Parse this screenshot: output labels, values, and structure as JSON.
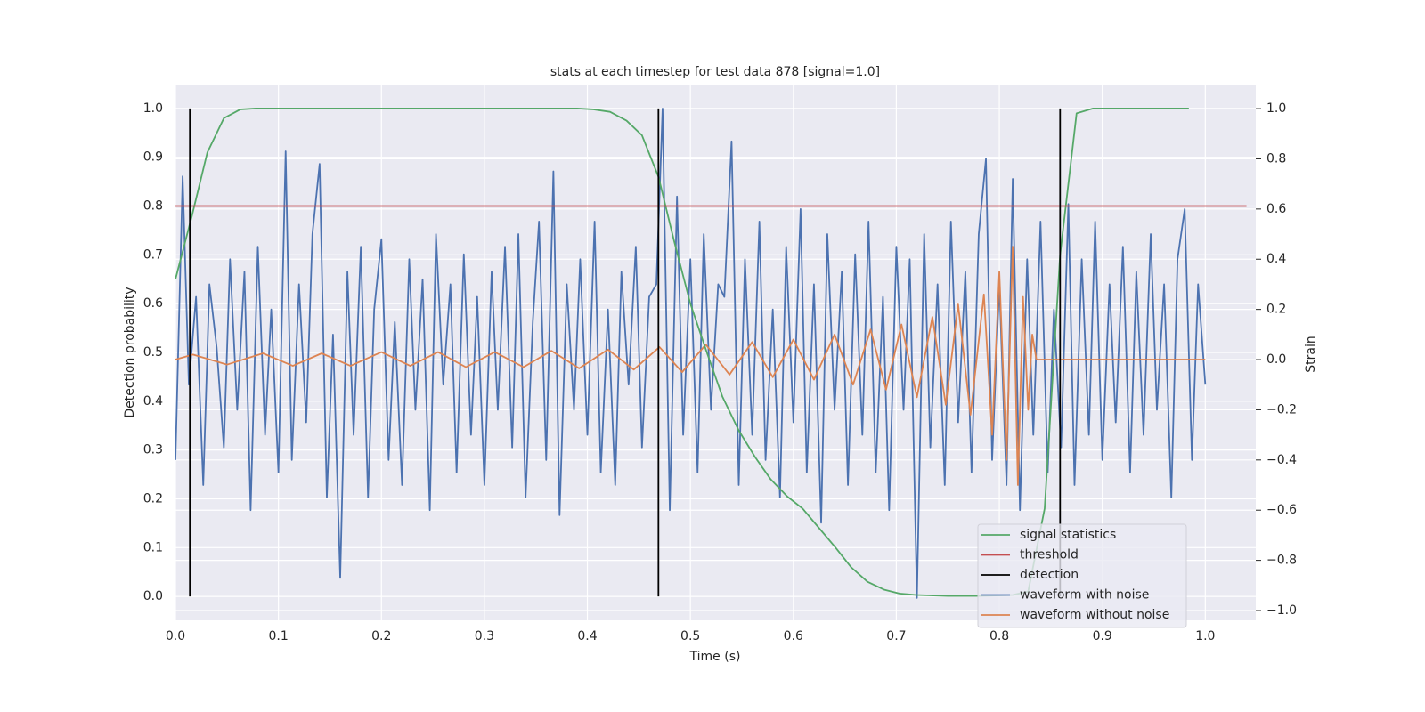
{
  "chart_data": {
    "type": "line",
    "title": "stats at each timestep for test data 878 [signal=1.0]",
    "xlabel": "Time (s)",
    "ylabel": "Detection probability",
    "y2label": "Strain",
    "xlim": [
      0,
      1.049
    ],
    "ylim": [
      -0.049,
      1.049
    ],
    "y2lim": [
      -1.039,
      1.096
    ],
    "xticks": [
      {
        "value": 0,
        "label": "0.0"
      },
      0.1,
      0.2,
      0.3,
      0.4,
      0.5,
      0.6,
      0.7,
      0.8,
      0.9,
      {
        "value": 1,
        "label": "1.0"
      }
    ],
    "yticks": [
      {
        "value": 0,
        "label": "0.0"
      },
      0.1,
      0.2,
      0.3,
      0.4,
      0.5,
      0.6,
      0.7,
      0.8,
      0.9,
      {
        "value": 1,
        "label": "1.0"
      }
    ],
    "y2ticks": [
      {
        "value": -1,
        "label": "−1.0"
      },
      {
        "value": -0.8,
        "label": "−0.8"
      },
      {
        "value": -0.6,
        "label": "−0.6"
      },
      {
        "value": -0.4,
        "label": "−0.4"
      },
      {
        "value": -0.2,
        "label": "−0.2"
      },
      {
        "value": 0,
        "label": "0.0"
      },
      0.2,
      0.4,
      0.6,
      0.8,
      {
        "value": 1,
        "label": "1.0"
      }
    ],
    "grid": true,
    "legend": "lower right",
    "series": [
      {
        "name": "signal statistics",
        "color": "#55a868",
        "x": [
          0,
          0.016,
          0.031,
          0.047,
          0.063,
          0.078,
          0.2,
          0.39,
          0.406,
          0.422,
          0.438,
          0.453,
          0.469,
          0.484,
          0.5,
          0.516,
          0.531,
          0.547,
          0.563,
          0.578,
          0.594,
          0.609,
          0.625,
          0.641,
          0.656,
          0.672,
          0.688,
          0.703,
          0.719,
          0.75,
          0.781,
          0.797,
          0.813,
          0.828,
          0.844,
          0.859,
          0.875,
          0.891,
          0.984
        ],
        "values": [
          0.65,
          0.78,
          0.91,
          0.98,
          0.998,
          1.0,
          1.0,
          1.0,
          0.998,
          0.993,
          0.975,
          0.945,
          0.86,
          0.73,
          0.6,
          0.5,
          0.41,
          0.34,
          0.285,
          0.24,
          0.205,
          0.18,
          0.14,
          0.1,
          0.06,
          0.03,
          0.014,
          0.006,
          0.003,
          0.001,
          0.001,
          0.002,
          0.003,
          0.01,
          0.18,
          0.7,
          0.99,
          1.0,
          1.0
        ]
      },
      {
        "name": "threshold",
        "color": "#c44e52",
        "x": [
          0,
          1.04
        ],
        "values": [
          0.8,
          0.8
        ]
      },
      {
        "name": "detection",
        "color": "#000000",
        "x": [
          0.014,
          0.469,
          0.859
        ],
        "ymin": 0,
        "ymax": 1
      },
      {
        "name": "waveform with noise",
        "color": "#4c72b0",
        "axis": "y2",
        "x": [
          0,
          0.007,
          0.013,
          0.02,
          0.027,
          0.033,
          0.04,
          0.047,
          0.053,
          0.06,
          0.067,
          0.073,
          0.08,
          0.087,
          0.093,
          0.1,
          0.107,
          0.113,
          0.12,
          0.127,
          0.133,
          0.14,
          0.147,
          0.153,
          0.16,
          0.167,
          0.173,
          0.18,
          0.187,
          0.193,
          0.2,
          0.207,
          0.213,
          0.22,
          0.227,
          0.233,
          0.24,
          0.247,
          0.253,
          0.26,
          0.267,
          0.273,
          0.28,
          0.287,
          0.293,
          0.3,
          0.307,
          0.313,
          0.32,
          0.327,
          0.333,
          0.34,
          0.347,
          0.353,
          0.36,
          0.367,
          0.373,
          0.38,
          0.387,
          0.393,
          0.4,
          0.407,
          0.413,
          0.42,
          0.427,
          0.433,
          0.44,
          0.447,
          0.453,
          0.46,
          0.467,
          0.473,
          0.48,
          0.487,
          0.493,
          0.5,
          0.507,
          0.513,
          0.52,
          0.527,
          0.533,
          0.54,
          0.547,
          0.553,
          0.56,
          0.567,
          0.573,
          0.58,
          0.587,
          0.593,
          0.6,
          0.607,
          0.613,
          0.62,
          0.627,
          0.633,
          0.64,
          0.647,
          0.653,
          0.66,
          0.667,
          0.673,
          0.68,
          0.687,
          0.693,
          0.7,
          0.707,
          0.713,
          0.72,
          0.727,
          0.733,
          0.74,
          0.747,
          0.753,
          0.76,
          0.767,
          0.773,
          0.78,
          0.787,
          0.793,
          0.8,
          0.807,
          0.813,
          0.82,
          0.827,
          0.833,
          0.84,
          0.847,
          0.853,
          0.86,
          0.867,
          0.873,
          0.88,
          0.887,
          0.893,
          0.9,
          0.907,
          0.913,
          0.92,
          0.927,
          0.933,
          0.94,
          0.947,
          0.953,
          0.96,
          0.967,
          0.973,
          0.98,
          0.987,
          0.993,
          1.0
        ],
        "values": [
          -0.4,
          0.73,
          -0.1,
          0.25,
          -0.5,
          0.3,
          0.05,
          -0.35,
          0.4,
          -0.2,
          0.35,
          -0.6,
          0.45,
          -0.3,
          0.2,
          -0.45,
          0.83,
          -0.4,
          0.3,
          -0.25,
          0.5,
          0.78,
          -0.55,
          0.1,
          -0.87,
          0.35,
          -0.3,
          0.45,
          -0.55,
          0.2,
          0.48,
          -0.4,
          0.15,
          -0.5,
          0.4,
          -0.2,
          0.32,
          -0.6,
          0.5,
          -0.1,
          0.3,
          -0.45,
          0.42,
          -0.3,
          0.25,
          -0.5,
          0.35,
          -0.2,
          0.45,
          -0.35,
          0.5,
          -0.55,
          0.15,
          0.55,
          -0.4,
          0.75,
          -0.62,
          0.3,
          -0.2,
          0.4,
          -0.3,
          0.55,
          -0.45,
          0.2,
          -0.5,
          0.35,
          -0.1,
          0.45,
          -0.35,
          0.25,
          0.3,
          1.0,
          -0.6,
          0.65,
          -0.3,
          0.4,
          -0.45,
          0.5,
          -0.2,
          0.3,
          0.25,
          0.87,
          -0.5,
          0.4,
          -0.3,
          0.55,
          -0.4,
          0.2,
          -0.55,
          0.45,
          -0.25,
          0.6,
          -0.45,
          0.3,
          -0.65,
          0.5,
          -0.2,
          0.35,
          -0.5,
          0.42,
          -0.3,
          0.55,
          -0.45,
          0.25,
          -0.6,
          0.45,
          -0.2,
          0.4,
          -0.95,
          0.5,
          -0.35,
          0.3,
          -0.5,
          0.55,
          -0.25,
          0.35,
          -0.45,
          0.5,
          0.8,
          -0.4,
          0.3,
          -0.5,
          0.72,
          -0.6,
          0.4,
          -0.3,
          0.55,
          -0.45,
          0.2,
          -0.35,
          0.62,
          -0.5,
          0.4,
          -0.3,
          0.55,
          -0.4,
          0.3,
          -0.25,
          0.45,
          -0.45,
          0.35,
          -0.3,
          0.5,
          -0.2,
          0.3,
          -0.55,
          0.4,
          0.6,
          -0.4,
          0.3,
          -0.1
        ]
      },
      {
        "name": "waveform without noise",
        "color": "#dd8452",
        "axis": "y2",
        "x": [
          0,
          0.017,
          0.05,
          0.085,
          0.114,
          0.142,
          0.17,
          0.2,
          0.228,
          0.255,
          0.282,
          0.31,
          0.338,
          0.365,
          0.392,
          0.42,
          0.445,
          0.47,
          0.492,
          0.515,
          0.538,
          0.56,
          0.58,
          0.6,
          0.62,
          0.64,
          0.658,
          0.675,
          0.69,
          0.705,
          0.72,
          0.735,
          0.748,
          0.76,
          0.772,
          0.785,
          0.793,
          0.8,
          0.807,
          0.813,
          0.818,
          0.823,
          0.828,
          0.832,
          0.836,
          1.0
        ],
        "values": [
          0,
          0.02,
          -0.02,
          0.025,
          -0.025,
          0.025,
          -0.025,
          0.03,
          -0.025,
          0.03,
          -0.03,
          0.03,
          -0.03,
          0.035,
          -0.035,
          0.04,
          -0.04,
          0.05,
          -0.05,
          0.06,
          -0.06,
          0.07,
          -0.07,
          0.08,
          -0.08,
          0.1,
          -0.1,
          0.12,
          -0.12,
          0.14,
          -0.15,
          0.17,
          -0.18,
          0.22,
          -0.22,
          0.26,
          -0.3,
          0.35,
          -0.4,
          0.45,
          -0.5,
          0.25,
          -0.2,
          0.1,
          0,
          0
        ]
      }
    ]
  }
}
